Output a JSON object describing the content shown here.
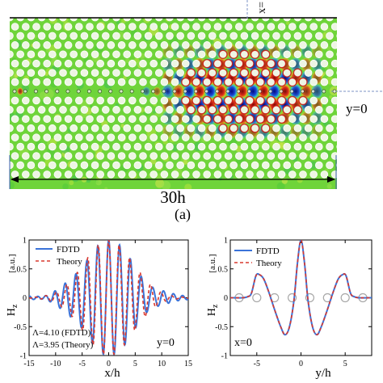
{
  "top_panel": {
    "scale_label": "30h",
    "y_label": "y=0",
    "x_label_partial": "x=",
    "caption": "(a)",
    "colors": {
      "background": "#6fd43a",
      "hole": "#eef5e4",
      "hole_edge": "#ffffff",
      "rim": "#111111"
    }
  },
  "chart_data": [
    {
      "type": "line",
      "xlabel": "x/h",
      "ylabel": "Hz",
      "ylabel_main": "H",
      "ylabel_sub": "z",
      "y_unit": "[a.u.]",
      "xlim": [
        -15,
        15
      ],
      "ylim": [
        -1,
        1
      ],
      "xticks": [
        -15,
        -10,
        -5,
        0,
        5,
        10,
        15
      ],
      "yticks": [
        -1,
        -0.5,
        0,
        0.5,
        1
      ],
      "xtick_labels": [
        "-15",
        "-10",
        "-5",
        "0",
        "5",
        "10",
        "15"
      ],
      "ytick_labels": [
        "-1",
        "-0.5",
        "0",
        "0.5",
        "1"
      ],
      "legend": [
        "FDTD",
        "Theory"
      ],
      "legend_placement": "top-left",
      "annotation_y": "y=0",
      "annotation_lambda_fdtd": "Λ=4.10 (FDTD)",
      "annotation_lambda_theory": "Λ=3.95 (Theory)",
      "series": [
        {
          "name": "FDTD",
          "color": "#3b73d9",
          "style": "solid",
          "model": {
            "wavelength": 2.05,
            "envelope_sigma": 4.6,
            "background_ripple": 0.12
          }
        },
        {
          "name": "Theory",
          "color": "#d9382f",
          "style": "dashed",
          "model": {
            "wavelength": 1.975,
            "envelope_sigma": 4.6,
            "background_ripple": 0.0
          }
        }
      ]
    },
    {
      "type": "line",
      "xlabel": "y/h",
      "ylabel": "Hz",
      "ylabel_main": "H",
      "ylabel_sub": "z",
      "y_unit": "[a.u.]",
      "xlim": [
        -8,
        8
      ],
      "ylim": [
        -1,
        1
      ],
      "xticks": [
        -5,
        0,
        5
      ],
      "yticks": [
        -1,
        -0.5,
        0,
        0.5,
        1
      ],
      "xtick_labels": [
        "-5",
        "0",
        "5"
      ],
      "ytick_labels": [
        "-1",
        "-0.5",
        "0",
        "0.5",
        "1"
      ],
      "legend": [
        "FDTD",
        "Theory"
      ],
      "legend_placement": "top-left",
      "annotation_x": "x=0",
      "hole_markers_x": [
        -7,
        -5,
        -3,
        -1,
        1,
        3,
        5,
        7
      ],
      "hole_markers_color": "#a8a8a8",
      "series": [
        {
          "name": "FDTD",
          "color": "#3b73d9",
          "style": "solid"
        },
        {
          "name": "Theory",
          "color": "#d9382f",
          "style": "dashed"
        }
      ],
      "profile_points": [
        [
          -8,
          0
        ],
        [
          -6.6,
          0
        ],
        [
          -6.0,
          0.02
        ],
        [
          -5.6,
          0.08
        ],
        [
          -5.1,
          0.38
        ],
        [
          -4.7,
          0.4
        ],
        [
          -4.2,
          0.32
        ],
        [
          -3.6,
          0.08
        ],
        [
          -3.0,
          -0.2
        ],
        [
          -2.3,
          -0.5
        ],
        [
          -1.8,
          -0.64
        ],
        [
          -1.3,
          -0.5
        ],
        [
          -0.8,
          -0.05
        ],
        [
          -0.4,
          0.6
        ],
        [
          0,
          1.0
        ],
        [
          0.4,
          0.6
        ],
        [
          0.8,
          -0.05
        ],
        [
          1.3,
          -0.5
        ],
        [
          1.8,
          -0.64
        ],
        [
          2.3,
          -0.5
        ],
        [
          3.0,
          -0.2
        ],
        [
          3.6,
          0.08
        ],
        [
          4.2,
          0.32
        ],
        [
          4.7,
          0.4
        ],
        [
          5.1,
          0.38
        ],
        [
          5.6,
          0.08
        ],
        [
          6.0,
          0.02
        ],
        [
          6.6,
          0
        ],
        [
          8,
          0
        ]
      ]
    }
  ]
}
